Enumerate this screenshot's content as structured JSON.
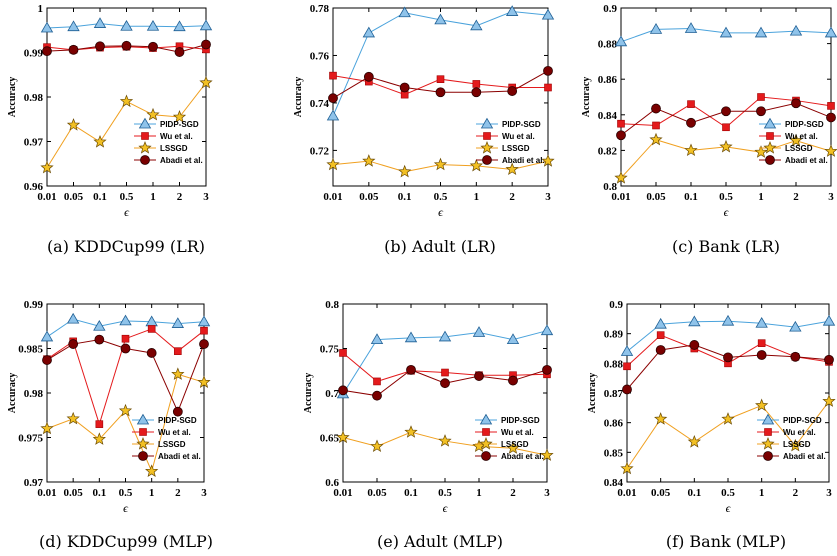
{
  "figure": {
    "x_tick_labels": [
      "0.01",
      "0.05",
      "0.1",
      "0.5",
      "1",
      "2",
      "3"
    ],
    "series_names": [
      "PIDP-SGD",
      "Wu et al.",
      "LSSGD",
      "Abadi et al."
    ],
    "series_colors": [
      "#4ba3dc",
      "#e41a1c",
      "#f0a020",
      "#8b0000"
    ],
    "marker_fills": [
      "#8fc3ea",
      "#e41a1c",
      "#f2c024",
      "#7a0000"
    ],
    "marker_shapes": [
      "triangle",
      "square",
      "star",
      "circle"
    ]
  },
  "chart_data": [
    {
      "type": "line",
      "caption": "(a) KDDCup99 (LR)",
      "xlabel": "ϵ",
      "ylabel": "Accuracy",
      "ylim": [
        0.96,
        1.0
      ],
      "yticks": [
        "0.96",
        "0.97",
        "0.98",
        "0.99",
        "1"
      ],
      "legend_position": "bottom-right",
      "series": [
        {
          "name": "PIDP-SGD",
          "values": [
            0.9955,
            0.9958,
            0.9965,
            0.9959,
            0.9959,
            0.9958,
            0.996
          ]
        },
        {
          "name": "Wu et al.",
          "values": [
            0.9912,
            0.9906,
            0.9911,
            0.9913,
            0.991,
            0.9914,
            0.9907
          ]
        },
        {
          "name": "LSSGD",
          "values": [
            0.9641,
            0.9737,
            0.9699,
            0.979,
            0.976,
            0.9755,
            0.9832
          ]
        },
        {
          "name": "Abadi et al.",
          "values": [
            0.9903,
            0.9906,
            0.9914,
            0.9915,
            0.9913,
            0.9901,
            0.9918
          ]
        }
      ]
    },
    {
      "type": "line",
      "caption": "(b) Adult (LR)",
      "xlabel": "ϵ",
      "ylabel": "Accuracy",
      "ylim": [
        0.705,
        0.78
      ],
      "yticks": [
        "0.72",
        "0.74",
        "0.76",
        "0.78"
      ],
      "legend_position": "bottom-right",
      "series": [
        {
          "name": "PIDP-SGD",
          "values": [
            0.7345,
            0.7695,
            0.778,
            0.775,
            0.7725,
            0.7785,
            0.777
          ]
        },
        {
          "name": "Wu et al.",
          "values": [
            0.7515,
            0.749,
            0.7435,
            0.75,
            0.748,
            0.7465,
            0.7465
          ]
        },
        {
          "name": "LSSGD",
          "values": [
            0.714,
            0.7155,
            0.711,
            0.714,
            0.7135,
            0.712,
            0.7155
          ]
        },
        {
          "name": "Abadi et al.",
          "values": [
            0.742,
            0.751,
            0.7465,
            0.7445,
            0.7445,
            0.745,
            0.7535
          ]
        }
      ]
    },
    {
      "type": "line",
      "caption": "(c) Bank (LR)",
      "xlabel": "ϵ",
      "ylabel": "Accuracy",
      "ylim": [
        0.8,
        0.9
      ],
      "yticks": [
        "0.8",
        "0.82",
        "0.84",
        "0.86",
        "0.88",
        "0.9"
      ],
      "legend_position": "bottom-right",
      "series": [
        {
          "name": "PIDP-SGD",
          "values": [
            0.881,
            0.888,
            0.8885,
            0.886,
            0.886,
            0.887,
            0.886
          ]
        },
        {
          "name": "Wu et al.",
          "values": [
            0.835,
            0.834,
            0.846,
            0.833,
            0.85,
            0.848,
            0.845
          ]
        },
        {
          "name": "LSSGD",
          "values": [
            0.8045,
            0.826,
            0.82,
            0.822,
            0.819,
            0.8255,
            0.8195
          ]
        },
        {
          "name": "Abadi et al.",
          "values": [
            0.8285,
            0.8435,
            0.8355,
            0.842,
            0.842,
            0.8465,
            0.8385
          ]
        }
      ]
    },
    {
      "type": "line",
      "caption": "(d) KDDCup99 (MLP)",
      "xlabel": "ϵ",
      "ylabel": "Accuracy",
      "ylim": [
        0.97,
        0.99
      ],
      "yticks": [
        "0.97",
        "0.975",
        "0.98",
        "0.985",
        "0.99"
      ],
      "legend_position": "bottom-right",
      "series": [
        {
          "name": "PIDP-SGD",
          "values": [
            0.9863,
            0.9883,
            0.9875,
            0.9881,
            0.988,
            0.9878,
            0.988
          ]
        },
        {
          "name": "Wu et al.",
          "values": [
            0.9838,
            0.9858,
            0.9765,
            0.9861,
            0.9872,
            0.9847,
            0.987
          ]
        },
        {
          "name": "LSSGD",
          "values": [
            0.976,
            0.9771,
            0.9748,
            0.978,
            0.9712,
            0.9821,
            0.9812
          ]
        },
        {
          "name": "Abadi et al.",
          "values": [
            0.9837,
            0.9855,
            0.986,
            0.985,
            0.9845,
            0.9779,
            0.9855
          ]
        }
      ]
    },
    {
      "type": "line",
      "caption": "(e) Adult (MLP)",
      "xlabel": "ϵ",
      "ylabel": "Accuracy",
      "ylim": [
        0.6,
        0.8
      ],
      "yticks": [
        "0.6",
        "0.65",
        "0.7",
        "0.75",
        "0.8"
      ],
      "legend_position": "bottom-right",
      "series": [
        {
          "name": "PIDP-SGD",
          "values": [
            0.699,
            0.76,
            0.762,
            0.763,
            0.768,
            0.76,
            0.77
          ]
        },
        {
          "name": "Wu et al.",
          "values": [
            0.745,
            0.713,
            0.725,
            0.723,
            0.72,
            0.72,
            0.721
          ]
        },
        {
          "name": "LSSGD",
          "values": [
            0.65,
            0.64,
            0.656,
            0.646,
            0.64,
            0.638,
            0.63
          ]
        },
        {
          "name": "Abadi et al.",
          "values": [
            0.703,
            0.697,
            0.726,
            0.711,
            0.719,
            0.714,
            0.726
          ]
        }
      ]
    },
    {
      "type": "line",
      "caption": "(f) Bank (MLP)",
      "xlabel": "ϵ",
      "ylabel": "Accuracy",
      "ylim": [
        0.84,
        0.9
      ],
      "yticks": [
        "0.84",
        "0.85",
        "0.86",
        "0.87",
        "0.88",
        "0.89",
        "0.9"
      ],
      "legend_position": "bottom-right",
      "series": [
        {
          "name": "PIDP-SGD",
          "values": [
            0.884,
            0.8932,
            0.894,
            0.8942,
            0.8935,
            0.8922,
            0.8942
          ]
        },
        {
          "name": "Wu et al.",
          "values": [
            0.879,
            0.8895,
            0.885,
            0.88,
            0.8868,
            0.8822,
            0.8805
          ]
        },
        {
          "name": "LSSGD",
          "values": [
            0.8445,
            0.8612,
            0.8535,
            0.8612,
            0.8658,
            0.8522,
            0.8672
          ]
        },
        {
          "name": "Abadi et al.",
          "values": [
            0.8712,
            0.8845,
            0.8862,
            0.882,
            0.8828,
            0.8822,
            0.8812
          ]
        }
      ]
    }
  ]
}
